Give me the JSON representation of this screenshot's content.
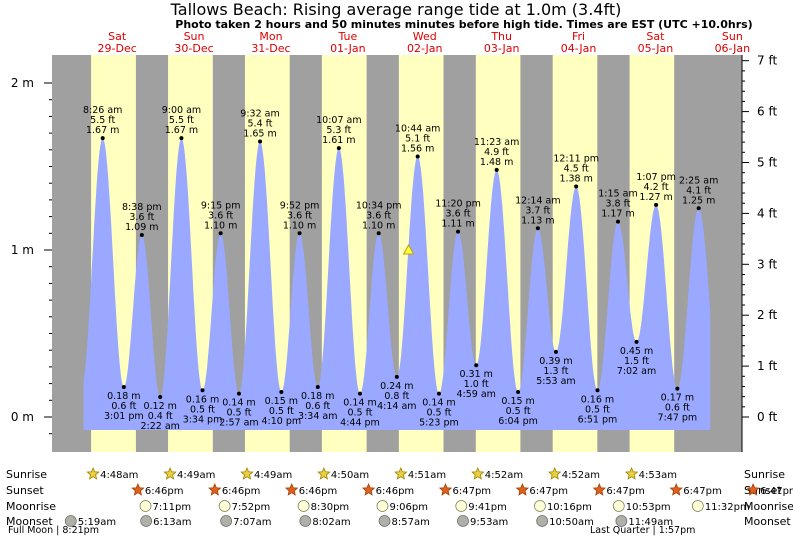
{
  "chart_data": {
    "type": "area",
    "title": "Tallows Beach: Rising average range tide at 1.0m (3.4ft)",
    "subtitle": "Photo taken 2 hours and 50 minutes minutes before high tide. Times are EST (UTC +10.0hrs)",
    "days": [
      {
        "name": "Sat",
        "date": "29-Dec"
      },
      {
        "name": "Sun",
        "date": "30-Dec"
      },
      {
        "name": "Mon",
        "date": "31-Dec"
      },
      {
        "name": "Tue",
        "date": "01-Jan"
      },
      {
        "name": "Wed",
        "date": "02-Jan"
      },
      {
        "name": "Thu",
        "date": "03-Jan"
      },
      {
        "name": "Fri",
        "date": "04-Jan"
      },
      {
        "name": "Sat",
        "date": "05-Jan"
      },
      {
        "name": "Sun",
        "date": "06-Jan"
      }
    ],
    "y_left_ticks": [
      {
        "v": 0,
        "label": "0 m"
      },
      {
        "v": 1,
        "label": "1 m"
      },
      {
        "v": 2,
        "label": "2 m"
      }
    ],
    "y_right_ticks": [
      "0 ft",
      "1 ft",
      "2 ft",
      "3 ft",
      "4 ft",
      "5 ft",
      "6 ft",
      "7 ft"
    ],
    "ylim_m": [
      -0.2,
      2.1
    ],
    "tides": [
      {
        "day": 0.351,
        "time": "8:26 am",
        "ft": "5.5 ft",
        "m": 1.67,
        "m_label": "1.67 m",
        "type": "high"
      },
      {
        "day": 0.626,
        "time": "3:01 pm",
        "ft": "0.6 ft",
        "m": 0.18,
        "m_label": "0.18 m",
        "type": "low"
      },
      {
        "day": 0.86,
        "time": "8:38 pm",
        "ft": "3.6 ft",
        "m": 1.09,
        "m_label": "1.09 m",
        "type": "high"
      },
      {
        "day": 1.099,
        "time": "2:22 am",
        "ft": "0.4 ft",
        "m": 0.12,
        "m_label": "0.12 m",
        "type": "low"
      },
      {
        "day": 1.375,
        "time": "9:00 am",
        "ft": "5.5 ft",
        "m": 1.67,
        "m_label": "1.67 m",
        "type": "high"
      },
      {
        "day": 1.649,
        "time": "3:34 pm",
        "ft": "0.5 ft",
        "m": 0.16,
        "m_label": "0.16 m",
        "type": "low"
      },
      {
        "day": 1.885,
        "time": "9:15 pm",
        "ft": "3.6 ft",
        "m": 1.1,
        "m_label": "1.10 m",
        "type": "high"
      },
      {
        "day": 2.123,
        "time": "2:57 am",
        "ft": "0.5 ft",
        "m": 0.14,
        "m_label": "0.14 m",
        "type": "low"
      },
      {
        "day": 2.397,
        "time": "9:32 am",
        "ft": "5.4 ft",
        "m": 1.65,
        "m_label": "1.65 m",
        "type": "high"
      },
      {
        "day": 2.674,
        "time": "4:10 pm",
        "ft": "0.5 ft",
        "m": 0.15,
        "m_label": "0.15 m",
        "type": "low"
      },
      {
        "day": 2.911,
        "time": "9:52 pm",
        "ft": "3.6 ft",
        "m": 1.1,
        "m_label": "1.10 m",
        "type": "high"
      },
      {
        "day": 3.148,
        "time": "3:34 am",
        "ft": "0.6 ft",
        "m": 0.18,
        "m_label": "0.18 m",
        "type": "low"
      },
      {
        "day": 3.422,
        "time": "10:07 am",
        "ft": "5.3 ft",
        "m": 1.61,
        "m_label": "1.61 m",
        "type": "high"
      },
      {
        "day": 3.697,
        "time": "4:44 pm",
        "ft": "0.5 ft",
        "m": 0.14,
        "m_label": "0.14 m",
        "type": "low"
      },
      {
        "day": 3.94,
        "time": "10:34 pm",
        "ft": "3.6 ft",
        "m": 1.1,
        "m_label": "1.10 m",
        "type": "high"
      },
      {
        "day": 4.176,
        "time": "4:14 am",
        "ft": "0.8 ft",
        "m": 0.24,
        "m_label": "0.24 m",
        "type": "low"
      },
      {
        "day": 4.447,
        "time": "10:44 am",
        "ft": "5.1 ft",
        "m": 1.56,
        "m_label": "1.56 m",
        "type": "high"
      },
      {
        "day": 4.724,
        "time": "5:23 pm",
        "ft": "0.5 ft",
        "m": 0.14,
        "m_label": "0.14 m",
        "type": "low"
      },
      {
        "day": 4.972,
        "time": "11:20 pm",
        "ft": "3.6 ft",
        "m": 1.11,
        "m_label": "1.11 m",
        "type": "high"
      },
      {
        "day": 5.208,
        "time": "4:59 am",
        "ft": "1.0 ft",
        "m": 0.31,
        "m_label": "0.31 m",
        "type": "low"
      },
      {
        "day": 5.474,
        "time": "11:23 am",
        "ft": "4.9 ft",
        "m": 1.48,
        "m_label": "1.48 m",
        "type": "high"
      },
      {
        "day": 5.753,
        "time": "6:04 pm",
        "ft": "0.5 ft",
        "m": 0.15,
        "m_label": "0.15 m",
        "type": "low"
      },
      {
        "day": 6.01,
        "time": "12:14 am",
        "ft": "3.7 ft",
        "m": 1.13,
        "m_label": "1.13 m",
        "type": "high"
      },
      {
        "day": 6.245,
        "time": "5:53 am",
        "ft": "1.3 ft",
        "m": 0.39,
        "m_label": "0.39 m",
        "type": "low"
      },
      {
        "day": 6.508,
        "time": "12:11 pm",
        "ft": "4.5 ft",
        "m": 1.38,
        "m_label": "1.38 m",
        "type": "high"
      },
      {
        "day": 6.785,
        "time": "6:51 pm",
        "ft": "0.5 ft",
        "m": 0.16,
        "m_label": "0.16 m",
        "type": "low"
      },
      {
        "day": 7.052,
        "time": "1:15 am",
        "ft": "3.8 ft",
        "m": 1.17,
        "m_label": "1.17 m",
        "type": "high"
      },
      {
        "day": 7.293,
        "time": "7:02 am",
        "ft": "1.5 ft",
        "m": 0.45,
        "m_label": "0.45 m",
        "type": "low"
      },
      {
        "day": 7.547,
        "time": "1:07 pm",
        "ft": "4.2 ft",
        "m": 1.27,
        "m_label": "1.27 m",
        "type": "high"
      },
      {
        "day": 7.824,
        "time": "7:47 pm",
        "ft": "0.6 ft",
        "m": 0.17,
        "m_label": "0.17 m",
        "type": "low"
      },
      {
        "day": 8.101,
        "time": "2:25 am",
        "ft": "4.1 ft",
        "m": 1.25,
        "m_label": "1.25 m",
        "type": "high"
      }
    ],
    "current": {
      "day": 4.329,
      "m": 1.0
    },
    "sun": {
      "sunrise": [
        {
          "day": 0.2,
          "time": "4:48am"
        },
        {
          "day": 1.201,
          "time": "4:49am"
        },
        {
          "day": 2.201,
          "time": "4:49am"
        },
        {
          "day": 3.201,
          "time": "4:50am"
        },
        {
          "day": 4.202,
          "time": "4:51am"
        },
        {
          "day": 5.203,
          "time": "4:52am"
        },
        {
          "day": 6.203,
          "time": "4:52am"
        },
        {
          "day": 7.203,
          "time": "4:53am"
        }
      ],
      "sunset": [
        {
          "day": 0.783,
          "time": "6:46pm"
        },
        {
          "day": 1.783,
          "time": "6:46pm"
        },
        {
          "day": 2.783,
          "time": "6:46pm"
        },
        {
          "day": 3.783,
          "time": "6:46pm"
        },
        {
          "day": 4.783,
          "time": "6:47pm"
        },
        {
          "day": 5.783,
          "time": "6:47pm"
        },
        {
          "day": 6.783,
          "time": "6:47pm"
        },
        {
          "day": 7.783,
          "time": "6:47pm"
        },
        {
          "day": 8.783,
          "time": "6:47pm"
        }
      ]
    },
    "moon": {
      "moonrise": [
        {
          "day": 0.882,
          "time": "7:11pm"
        },
        {
          "day": 1.911,
          "time": "7:52pm"
        },
        {
          "day": 2.938,
          "time": "8:30pm"
        },
        {
          "day": 3.963,
          "time": "9:06pm"
        },
        {
          "day": 4.988,
          "time": "9:41pm"
        },
        {
          "day": 6.011,
          "time": "10:16pm"
        },
        {
          "day": 7.036,
          "time": "10:53pm"
        },
        {
          "day": 8.064,
          "time": "11:32pm"
        }
      ],
      "moonset": [
        {
          "day": -0.22,
          "time": "5:19am"
        },
        {
          "day": 0.76,
          "time": "6:13am"
        },
        {
          "day": 1.8,
          "time": "7:07am"
        },
        {
          "day": 2.83,
          "time": "8:02am"
        },
        {
          "day": 3.86,
          "time": "8:57am"
        },
        {
          "day": 4.88,
          "time": "9:53am"
        },
        {
          "day": 5.91,
          "time": "10:50am"
        },
        {
          "day": 6.94,
          "time": "11:49am"
        }
      ]
    },
    "row_labels": {
      "sunrise": "Sunrise",
      "sunset": "Sunset",
      "moonrise": "Moonrise",
      "moonset": "Moonset"
    },
    "phases": {
      "left": "Full Moon | 8:21pm",
      "right": "Last Quarter | 1:57pm"
    },
    "colors": {
      "day_bg": "#ffffc0",
      "night_bg": "#a0a0a0",
      "water": "#9aa9ff",
      "day_label": "#e00000"
    }
  }
}
